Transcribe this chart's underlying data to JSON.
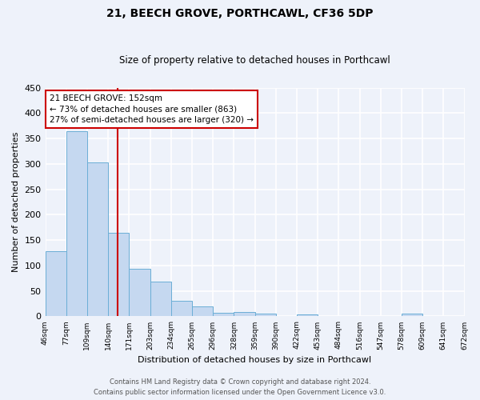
{
  "title": "21, BEECH GROVE, PORTHCAWL, CF36 5DP",
  "subtitle": "Size of property relative to detached houses in Porthcawl",
  "xlabel": "Distribution of detached houses by size in Porthcawl",
  "ylabel": "Number of detached properties",
  "bar_values": [
    128,
    365,
    303,
    164,
    94,
    69,
    30,
    19,
    7,
    9,
    5,
    0,
    4,
    0,
    0,
    0,
    0,
    5,
    0,
    0
  ],
  "bin_labels": [
    "46sqm",
    "77sqm",
    "109sqm",
    "140sqm",
    "171sqm",
    "203sqm",
    "234sqm",
    "265sqm",
    "296sqm",
    "328sqm",
    "359sqm",
    "390sqm",
    "422sqm",
    "453sqm",
    "484sqm",
    "516sqm",
    "547sqm",
    "578sqm",
    "609sqm",
    "641sqm",
    "672sqm"
  ],
  "bar_color": "#c5d8f0",
  "bar_edge_color": "#6baed6",
  "vline_x": 3.45,
  "vline_color": "#cc0000",
  "annotation_text": "21 BEECH GROVE: 152sqm\n← 73% of detached houses are smaller (863)\n27% of semi-detached houses are larger (320) →",
  "annotation_box_color": "#ffffff",
  "annotation_box_edge": "#cc0000",
  "ylim": [
    0,
    450
  ],
  "yticks": [
    0,
    50,
    100,
    150,
    200,
    250,
    300,
    350,
    400,
    450
  ],
  "footer_line1": "Contains HM Land Registry data © Crown copyright and database right 2024.",
  "footer_line2": "Contains public sector information licensed under the Open Government Licence v3.0.",
  "bg_color": "#eef2fa",
  "grid_color": "#ffffff"
}
